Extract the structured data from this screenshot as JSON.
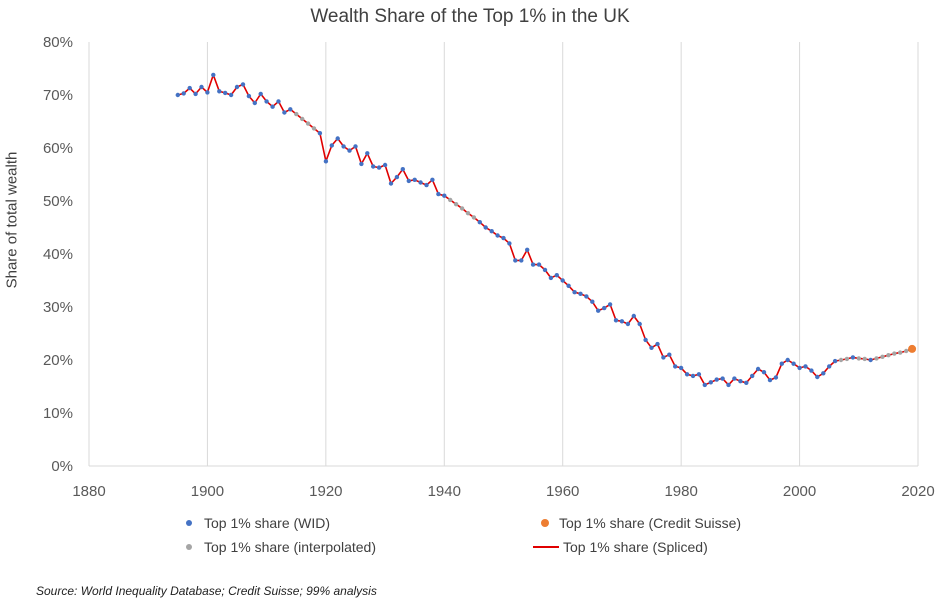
{
  "chart_data": {
    "type": "line",
    "title": "Wealth Share of the Top 1% in the UK",
    "ylabel": "Share of total wealth",
    "xlabel": "",
    "xlim": [
      1880,
      2020
    ],
    "ylim": [
      0,
      80
    ],
    "x_ticks": [
      "1880",
      "1900",
      "1920",
      "1940",
      "1960",
      "1980",
      "2000",
      "2020"
    ],
    "y_ticks": [
      "0%",
      "10%",
      "20%",
      "30%",
      "40%",
      "50%",
      "60%",
      "70%",
      "80%"
    ],
    "grid": "vertical",
    "legend_position": "bottom",
    "legend": {
      "wid": "Top 1% share (WID)",
      "credit": "Top 1% share (Credit Suisse)",
      "interp": "Top 1% share (interpolated)",
      "spliced": "Top 1% share (Spliced)"
    },
    "colors": {
      "wid": "#4472c4",
      "interp": "#a5a5a5",
      "credit": "#ed7d31",
      "spliced": "#e00000"
    },
    "series": [
      {
        "name": "Top 1% share (WID)",
        "points": [
          [
            1895,
            70.0
          ],
          [
            1896,
            70.3
          ],
          [
            1897,
            71.3
          ],
          [
            1898,
            70.2
          ],
          [
            1899,
            71.5
          ],
          [
            1900,
            70.5
          ],
          [
            1901,
            73.8
          ],
          [
            1902,
            70.7
          ],
          [
            1903,
            70.4
          ],
          [
            1904,
            70.0
          ],
          [
            1905,
            71.5
          ],
          [
            1906,
            72.0
          ],
          [
            1907,
            69.8
          ],
          [
            1908,
            68.5
          ],
          [
            1909,
            70.2
          ],
          [
            1910,
            68.8
          ],
          [
            1911,
            67.8
          ],
          [
            1912,
            68.8
          ],
          [
            1913,
            66.7
          ],
          [
            1914,
            67.3
          ],
          [
            1919,
            62.8
          ],
          [
            1920,
            57.5
          ],
          [
            1921,
            60.5
          ],
          [
            1922,
            61.8
          ],
          [
            1923,
            60.3
          ],
          [
            1924,
            59.5
          ],
          [
            1925,
            60.3
          ],
          [
            1926,
            57.0
          ],
          [
            1927,
            59.0
          ],
          [
            1928,
            56.5
          ],
          [
            1929,
            56.3
          ],
          [
            1930,
            56.8
          ],
          [
            1931,
            53.3
          ],
          [
            1932,
            54.5
          ],
          [
            1933,
            56.0
          ],
          [
            1934,
            53.8
          ],
          [
            1935,
            54.0
          ],
          [
            1936,
            53.5
          ],
          [
            1937,
            53.0
          ],
          [
            1938,
            54.0
          ],
          [
            1939,
            51.3
          ],
          [
            1940,
            51.0
          ],
          [
            1946,
            46.0
          ],
          [
            1947,
            45.0
          ],
          [
            1948,
            44.3
          ],
          [
            1949,
            43.5
          ],
          [
            1950,
            43.0
          ],
          [
            1951,
            42.0
          ],
          [
            1952,
            38.8
          ],
          [
            1953,
            38.8
          ],
          [
            1954,
            40.8
          ],
          [
            1955,
            38.0
          ],
          [
            1956,
            38.0
          ],
          [
            1957,
            37.0
          ],
          [
            1958,
            35.5
          ],
          [
            1959,
            36.0
          ],
          [
            1960,
            35.0
          ],
          [
            1961,
            34.0
          ],
          [
            1962,
            32.8
          ],
          [
            1963,
            32.5
          ],
          [
            1964,
            32.0
          ],
          [
            1965,
            31.0
          ],
          [
            1966,
            29.3
          ],
          [
            1967,
            29.8
          ],
          [
            1968,
            30.5
          ],
          [
            1969,
            27.5
          ],
          [
            1970,
            27.3
          ],
          [
            1971,
            26.8
          ],
          [
            1972,
            28.3
          ],
          [
            1973,
            26.8
          ],
          [
            1974,
            23.8
          ],
          [
            1975,
            22.3
          ],
          [
            1976,
            23.0
          ],
          [
            1977,
            20.5
          ],
          [
            1978,
            21.0
          ],
          [
            1979,
            18.8
          ],
          [
            1980,
            18.5
          ],
          [
            1981,
            17.3
          ],
          [
            1982,
            17.0
          ],
          [
            1983,
            17.3
          ],
          [
            1984,
            15.3
          ],
          [
            1985,
            15.8
          ],
          [
            1986,
            16.3
          ],
          [
            1987,
            16.5
          ],
          [
            1988,
            15.3
          ],
          [
            1989,
            16.5
          ],
          [
            1990,
            16.0
          ],
          [
            1991,
            15.7
          ],
          [
            1992,
            17.0
          ],
          [
            1993,
            18.3
          ],
          [
            1994,
            17.7
          ],
          [
            1995,
            16.2
          ],
          [
            1996,
            16.7
          ],
          [
            1997,
            19.3
          ],
          [
            1998,
            20.0
          ],
          [
            1999,
            19.3
          ],
          [
            2000,
            18.5
          ],
          [
            2001,
            18.8
          ],
          [
            2002,
            18.0
          ],
          [
            2003,
            16.8
          ],
          [
            2004,
            17.5
          ],
          [
            2005,
            18.8
          ],
          [
            2006,
            19.8
          ],
          [
            2009,
            20.5
          ],
          [
            2012,
            20.0
          ]
        ]
      },
      {
        "name": "Top 1% share (interpolated)",
        "points": [
          [
            1915,
            66.4
          ],
          [
            1916,
            65.5
          ],
          [
            1917,
            64.6
          ],
          [
            1918,
            63.7
          ],
          [
            1941,
            50.2
          ],
          [
            1942,
            49.4
          ],
          [
            1943,
            48.6
          ],
          [
            1944,
            47.7
          ],
          [
            1945,
            46.9
          ],
          [
            2007,
            20.0
          ],
          [
            2008,
            20.2
          ],
          [
            2010,
            20.3
          ],
          [
            2011,
            20.2
          ],
          [
            2013,
            20.3
          ],
          [
            2014,
            20.6
          ],
          [
            2015,
            20.9
          ],
          [
            2016,
            21.2
          ],
          [
            2017,
            21.4
          ],
          [
            2018,
            21.7
          ]
        ]
      },
      {
        "name": "Top 1% share (Credit Suisse)",
        "points": [
          [
            2019,
            22.1
          ]
        ]
      }
    ]
  },
  "source_note": "Source: World Inequality Database; Credit Suisse; 99% analysis"
}
